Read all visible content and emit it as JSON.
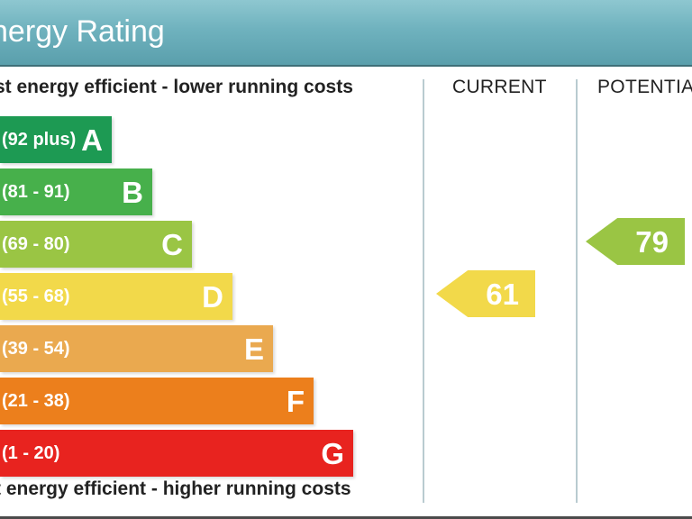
{
  "header": {
    "title": "nergy Rating"
  },
  "columns": {
    "top_label": "st energy efficient - lower running costs",
    "bottom_label": "t energy efficient - higher running costs",
    "current": "CURRENT",
    "potential": "POTENTIA"
  },
  "colors": {
    "header": "#6fb2be",
    "text_dark": "#222222",
    "band_text": "#ffffff"
  },
  "chart_data": {
    "type": "bar",
    "title": "nergy Rating",
    "categories": [
      "A",
      "B",
      "C",
      "D",
      "E",
      "F",
      "G"
    ],
    "bands": [
      {
        "letter": "A",
        "range": "(92 plus)",
        "color": "#1d9a53"
      },
      {
        "letter": "B",
        "range": "(81 - 91)",
        "color": "#47b04b"
      },
      {
        "letter": "C",
        "range": "(69 - 80)",
        "color": "#9ac544"
      },
      {
        "letter": "D",
        "range": "(55 - 68)",
        "color": "#f2d94a"
      },
      {
        "letter": "E",
        "range": "(39 - 54)",
        "color": "#eaa94f"
      },
      {
        "letter": "F",
        "range": "(21 - 38)",
        "color": "#ec7f1c"
      },
      {
        "letter": "G",
        "range": "(1 - 20)",
        "color": "#e8231f"
      }
    ],
    "current": {
      "value": 61,
      "band": "D",
      "label": "61",
      "color": "#f2d94a"
    },
    "potential": {
      "value": 79,
      "band": "C",
      "label": "79",
      "color": "#9ac544"
    }
  }
}
